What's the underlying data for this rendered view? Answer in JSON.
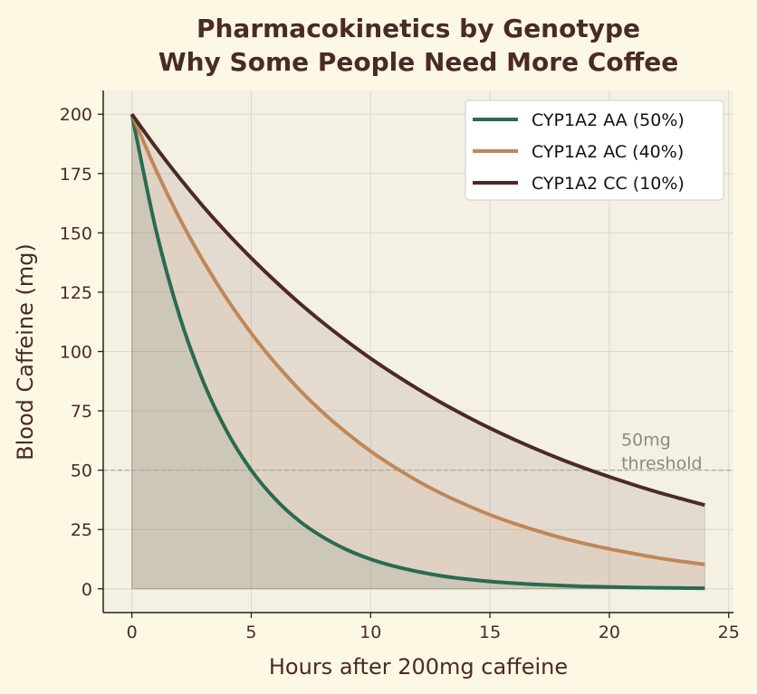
{
  "chart_data": {
    "type": "line",
    "title": "Pharmacokinetics by Genotype",
    "subtitle": "Why Some People Need More Coffee",
    "xlabel": "Hours after 200mg caffeine",
    "ylabel": "Blood Caffeine (mg)",
    "xlim": [
      -1.2,
      25.2
    ],
    "ylim": [
      -10,
      210
    ],
    "xticks": [
      0,
      5,
      10,
      15,
      20,
      25
    ],
    "yticks": [
      0,
      25,
      50,
      75,
      100,
      125,
      150,
      175,
      200
    ],
    "grid": true,
    "legend_position": "top-right",
    "x": [
      0,
      1,
      2,
      3,
      4,
      5,
      6,
      7,
      8,
      9,
      10,
      11,
      12,
      13,
      14,
      15,
      16,
      17,
      18,
      19,
      20,
      21,
      22,
      23,
      24
    ],
    "series": [
      {
        "name": "CYP1A2 AA (50%)",
        "color": "#2a6b4f",
        "values": [
          200,
          151.6,
          114.9,
          87.1,
          66.0,
          50.0,
          37.9,
          28.7,
          21.8,
          16.5,
          12.5,
          9.5,
          7.2,
          5.4,
          4.1,
          3.1,
          2.4,
          1.8,
          1.4,
          1.0,
          0.8,
          0.6,
          0.45,
          0.34,
          0.26
        ]
      },
      {
        "name": "CYP1A2 AC (40%)",
        "color": "#c08757",
        "values": [
          200,
          176.7,
          156.1,
          138.0,
          121.9,
          107.7,
          95.2,
          84.1,
          74.3,
          65.7,
          58.0,
          51.3,
          45.3,
          40.0,
          35.4,
          31.2,
          27.6,
          24.4,
          21.5,
          19.0,
          16.8,
          14.9,
          13.1,
          11.6,
          10.3
        ]
      },
      {
        "name": "CYP1A2 CC (10%)",
        "color": "#4a2a28",
        "values": [
          200,
          186.1,
          173.1,
          161.0,
          149.8,
          139.4,
          129.7,
          120.6,
          112.2,
          104.4,
          97.1,
          90.4,
          84.1,
          78.2,
          72.8,
          67.7,
          63.0,
          58.6,
          54.5,
          50.7,
          47.2,
          43.9,
          40.8,
          38.0,
          35.3
        ]
      }
    ],
    "annotations": [
      {
        "type": "hline",
        "y": 50,
        "style": "dashed",
        "color": "#a9a9a9"
      },
      {
        "text_line1": "50mg",
        "text_line2": "threshold",
        "x": 20.5,
        "y": 52,
        "color": "#8a8a85"
      }
    ]
  }
}
